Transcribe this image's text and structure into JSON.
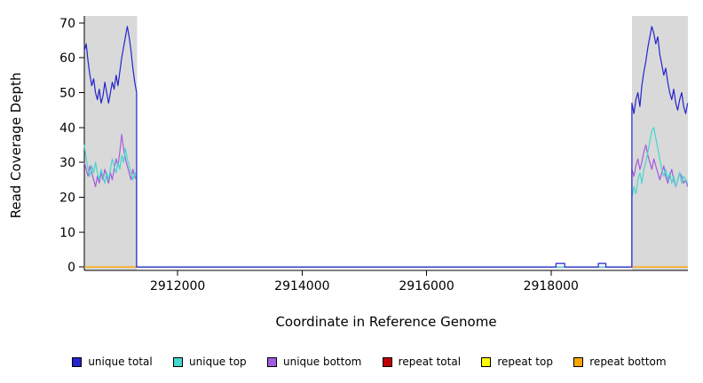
{
  "chart_data": {
    "type": "line",
    "title": "",
    "xlabel": "Coordinate in Reference Genome",
    "ylabel": "Read Coverage Depth",
    "xlim": [
      2910500,
      2920200
    ],
    "ylim": [
      0,
      70
    ],
    "xticks": [
      2912000,
      2914000,
      2916000,
      2918000
    ],
    "yticks": [
      0,
      10,
      20,
      30,
      40,
      50,
      60,
      70
    ],
    "grid": false,
    "legend_position": "bottom",
    "shaded_regions": [
      {
        "x0": 2910500,
        "x1": 2911350,
        "color": "#d9d9d9"
      },
      {
        "x0": 2919300,
        "x1": 2920200,
        "color": "#d9d9d9"
      }
    ],
    "series": [
      {
        "name": "repeat total",
        "color": "#c00000",
        "segments": [
          {
            "points": [
              [
                2910500,
                0
              ],
              [
                2920200,
                0
              ]
            ]
          }
        ]
      },
      {
        "name": "repeat top",
        "color": "#ffff00",
        "segments": [
          {
            "points": [
              [
                2910500,
                0
              ],
              [
                2920200,
                0
              ]
            ]
          }
        ]
      },
      {
        "name": "repeat bottom",
        "color": "#ffa500",
        "segments": [
          {
            "points": [
              [
                2910500,
                0
              ],
              [
                2920200,
                0
              ]
            ]
          }
        ]
      },
      {
        "name": "unique bottom",
        "color": "#a25ddc",
        "segments": [
          {
            "x0": 2910500,
            "dx": 30,
            "values": [
              30,
              28,
              26,
              29,
              27,
              25,
              23,
              26,
              24,
              27,
              25,
              28,
              26,
              24,
              27,
              25,
              28,
              31,
              29,
              33,
              38,
              34,
              31,
              29,
              27,
              25,
              28,
              26,
              25
            ]
          },
          {
            "points": [
              [
                2911340,
                0
              ],
              [
                2919300,
                0
              ]
            ]
          },
          {
            "x0": 2919300,
            "dx": 32,
            "values": [
              28,
              26,
              29,
              31,
              28,
              30,
              33,
              35,
              32,
              30,
              28,
              31,
              29,
              27,
              25,
              27,
              29,
              26,
              24,
              26,
              28,
              25,
              23,
              25,
              27,
              26,
              24,
              25,
              23
            ]
          }
        ]
      },
      {
        "name": "unique top",
        "color": "#45d6cf",
        "segments": [
          {
            "x0": 2910500,
            "dx": 30,
            "values": [
              35,
              31,
              28,
              26,
              29,
              27,
              30,
              27,
              25,
              28,
              26,
              24,
              27,
              25,
              28,
              31,
              29,
              27,
              30,
              28,
              32,
              30,
              34,
              31,
              29,
              27,
              25,
              27,
              26
            ]
          },
          {
            "points": [
              [
                2911340,
                0
              ],
              [
                2919300,
                0
              ]
            ]
          },
          {
            "x0": 2919300,
            "dx": 32,
            "values": [
              20,
              23,
              21,
              25,
              27,
              24,
              28,
              30,
              33,
              36,
              39,
              40,
              37,
              34,
              31,
              28,
              26,
              28,
              25,
              27,
              24,
              26,
              23,
              25,
              27,
              24,
              26,
              25,
              24
            ]
          }
        ]
      },
      {
        "name": "unique total",
        "color": "#2424cd",
        "segments": [
          {
            "x0": 2910500,
            "dx": 30,
            "values": [
              62,
              64,
              59,
              55,
              52,
              54,
              50,
              48,
              51,
              47,
              49,
              53,
              50,
              47,
              50,
              53,
              51,
              55,
              52,
              56,
              60,
              63,
              66,
              69,
              66,
              62,
              57,
              53,
              50
            ]
          },
          {
            "points": [
              [
                2911340,
                0
              ],
              [
                2918080,
                0
              ],
              [
                2918080,
                1
              ],
              [
                2918220,
                1
              ],
              [
                2918220,
                0
              ],
              [
                2918760,
                0
              ],
              [
                2918760,
                1
              ],
              [
                2918880,
                1
              ],
              [
                2918880,
                0
              ],
              [
                2919300,
                0
              ]
            ]
          },
          {
            "x0": 2919300,
            "dx": 32,
            "values": [
              47,
              44,
              48,
              50,
              46,
              52,
              56,
              59,
              63,
              66,
              69,
              67,
              64,
              66,
              61,
              58,
              55,
              57,
              53,
              50,
              48,
              51,
              47,
              45,
              48,
              50,
              46,
              44,
              47
            ]
          }
        ]
      }
    ],
    "legend": [
      {
        "label": "unique total",
        "color": "#2424cd"
      },
      {
        "label": "unique top",
        "color": "#45d6cf"
      },
      {
        "label": "unique bottom",
        "color": "#a25ddc"
      },
      {
        "label": "repeat total",
        "color": "#c00000"
      },
      {
        "label": "repeat top",
        "color": "#ffff00"
      },
      {
        "label": "repeat bottom",
        "color": "#ffa500"
      }
    ]
  }
}
